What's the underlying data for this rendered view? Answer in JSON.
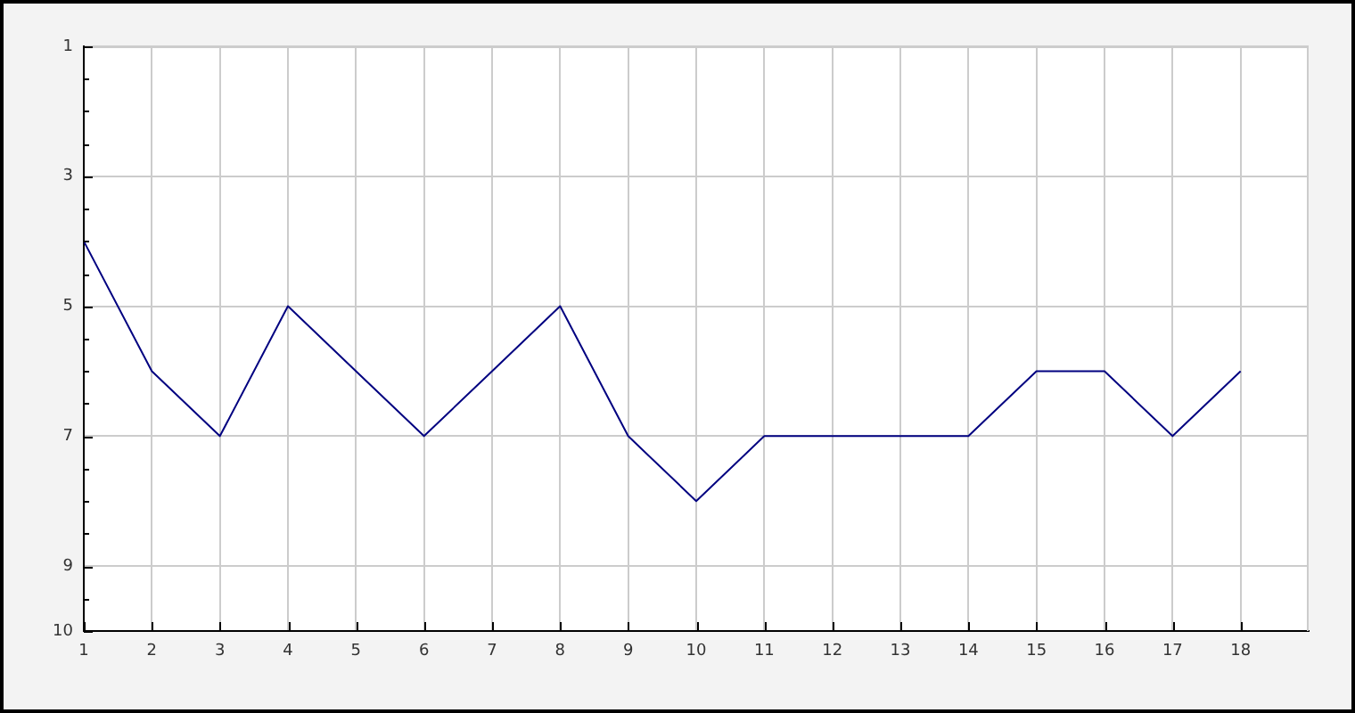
{
  "chart_data": {
    "type": "line",
    "x": [
      1,
      2,
      3,
      4,
      5,
      6,
      7,
      8,
      9,
      10,
      11,
      12,
      13,
      14,
      15,
      16,
      17,
      18
    ],
    "series": [
      {
        "color": "#000080",
        "values": [
          4,
          6,
          7,
          5,
          6,
          7,
          6,
          5,
          7,
          8,
          7,
          7,
          7,
          7,
          6,
          6,
          7,
          6
        ]
      }
    ],
    "xlim": [
      1,
      19
    ],
    "xticks": [
      1,
      2,
      3,
      4,
      5,
      6,
      7,
      8,
      9,
      10,
      11,
      12,
      13,
      14,
      15,
      16,
      17,
      18
    ],
    "ylim": [
      10,
      1
    ],
    "yticks": [
      1,
      {
        "value": 1.5,
        "label": null
      },
      {
        "value": 2,
        "label": null
      },
      {
        "value": 2.5,
        "label": null
      },
      3,
      {
        "value": 3.5,
        "label": null
      },
      {
        "value": 4,
        "label": null
      },
      {
        "value": 4.5,
        "label": null
      },
      5,
      {
        "value": 5.5,
        "label": null
      },
      {
        "value": 6,
        "label": null
      },
      {
        "value": 6.5,
        "label": null
      },
      7,
      {
        "value": 7.5,
        "label": null
      },
      {
        "value": 8,
        "label": null
      },
      {
        "value": 8.5,
        "label": null
      },
      9,
      {
        "value": 9.5,
        "label": null
      },
      10
    ],
    "grid": true,
    "legend": false,
    "marker": "none",
    "line_style": "solid"
  }
}
